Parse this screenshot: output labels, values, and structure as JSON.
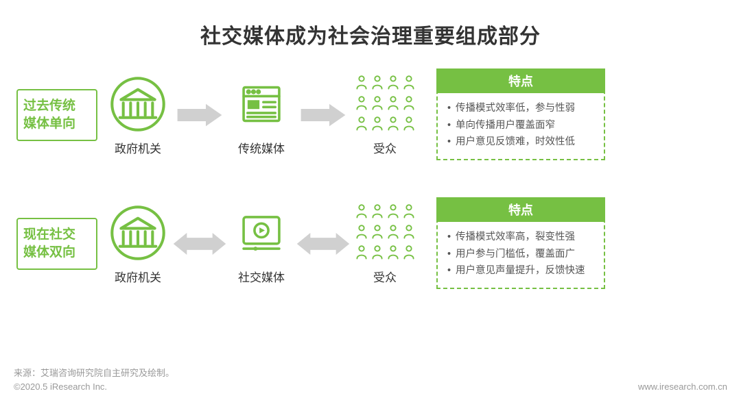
{
  "title": "社交媒体成为社会治理重要组成部分",
  "colors": {
    "accent": "#76c043",
    "arrow_gray": "#d0d0d0",
    "text_dark": "#333333",
    "text_muted": "#555555",
    "text_light": "#999999",
    "border_dashed": "#76c043"
  },
  "rows": [
    {
      "label": "过去传统\n媒体单向",
      "label_color": "#76c043",
      "nodes": [
        {
          "icon": "government",
          "caption": "政府机关"
        },
        {
          "icon": "traditional-media",
          "caption": "传统媒体"
        },
        {
          "icon": "audience",
          "caption": "受众"
        }
      ],
      "arrows": [
        {
          "type": "right",
          "color": "#d0d0d0"
        },
        {
          "type": "right",
          "color": "#d0d0d0"
        }
      ],
      "feature": {
        "header": "特点",
        "header_bg": "#76c043",
        "items": [
          "传播模式效率低，参与性弱",
          "单向传播用户覆盖面窄",
          "用户意见反馈难，时效性低"
        ]
      }
    },
    {
      "label": "现在社交\n媒体双向",
      "label_color": "#76c043",
      "nodes": [
        {
          "icon": "government",
          "caption": "政府机关"
        },
        {
          "icon": "social-media",
          "caption": "社交媒体"
        },
        {
          "icon": "audience",
          "caption": "受众"
        }
      ],
      "arrows": [
        {
          "type": "bidirectional",
          "color": "#d0d0d0"
        },
        {
          "type": "bidirectional",
          "color": "#d0d0d0"
        }
      ],
      "feature": {
        "header": "特点",
        "header_bg": "#76c043",
        "items": [
          "传播模式效率高，裂变性强",
          "用户参与门槛低，覆盖面广",
          "用户意见声量提升，反馈快速"
        ]
      }
    }
  ],
  "audience_grid": {
    "rows": 3,
    "cols": 4
  },
  "footer": {
    "source": "来源：艾瑞咨询研究院自主研究及绘制。",
    "copyright": "©2020.5 iResearch Inc.",
    "url": "www.iresearch.com.cn"
  }
}
